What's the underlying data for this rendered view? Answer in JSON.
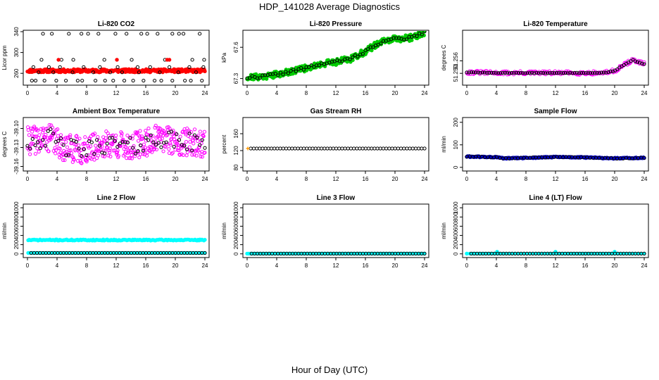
{
  "figure": {
    "title": "HDP_141028  Average Diagnostics",
    "xlabel": "Hour of Day (UTC)"
  },
  "chart_data": [
    {
      "type": "scatter",
      "title": "Li-820 CO2",
      "ylabel": "Licor ppm",
      "xlim": [
        0,
        24
      ],
      "ylim": [
        240,
        340
      ],
      "xticks": [
        "0",
        "4",
        "8",
        "12",
        "16",
        "20",
        "24"
      ],
      "yticks": [
        "260",
        "300",
        "340"
      ],
      "series": [
        {
          "name": "co2_avg",
          "color": "#ff0000",
          "marker": "filled",
          "mode": "band",
          "x_start": 0,
          "x_end": 24,
          "y_center": 265,
          "y_jitter": 3,
          "count": 300,
          "seed": 11
        },
        {
          "name": "co2_spikes",
          "color": "#000000",
          "marker": "open",
          "mode": "points",
          "x": [
            0.6,
            1.1,
            2.3,
            3.9,
            5.2,
            6.8,
            7.4,
            9.2,
            10.5,
            11.6,
            13.1,
            14.3,
            15.7,
            17.2,
            18.1,
            19.6,
            21.3,
            22.1,
            23.6,
            1.5,
            3.5,
            6.1,
            8.9,
            11.2,
            12.8,
            15.1,
            17.9,
            20.4,
            22.8,
            0.8,
            2.9,
            4.4,
            7.6,
            9.8,
            12.2,
            14.9,
            16.6,
            19.2,
            21.9,
            23.8,
            2.1,
            3.3,
            5.6,
            7.3,
            8.2,
            9.6,
            11.9,
            13.4,
            15.4,
            16.2,
            17.6,
            19.6,
            20.5,
            21.1,
            23.3,
            1.9,
            4.6,
            6.2,
            10.4,
            14.1,
            18.6,
            22.3,
            23.9
          ],
          "y": [
            246,
            246,
            246,
            246,
            246,
            246,
            246,
            246,
            246,
            246,
            246,
            246,
            246,
            246,
            246,
            246,
            246,
            246,
            246,
            262,
            262,
            262,
            262,
            262,
            262,
            262,
            262,
            262,
            262,
            272,
            272,
            272,
            272,
            272,
            272,
            272,
            272,
            272,
            272,
            272,
            336,
            336,
            336,
            336,
            336,
            336,
            336,
            336,
            336,
            336,
            336,
            336,
            336,
            336,
            336,
            286,
            286,
            286,
            286,
            286,
            286,
            286,
            286
          ]
        },
        {
          "name": "co2_red_spikes",
          "color": "#ff0000",
          "marker": "filled",
          "mode": "points",
          "x": [
            4.2,
            12.1,
            18.9,
            19.2
          ],
          "y": [
            286,
            286,
            286,
            286
          ]
        }
      ]
    },
    {
      "type": "scatter",
      "title": "Li-820 Pressure",
      "ylabel": "kPa",
      "xlim": [
        0,
        24
      ],
      "ylim": [
        67.25,
        67.75
      ],
      "xticks": [
        "0",
        "4",
        "8",
        "12",
        "16",
        "20",
        "24"
      ],
      "yticks": [
        "67.3",
        "67.6"
      ],
      "series": [
        {
          "name": "pressure_green",
          "color": "#00cc00",
          "marker": "filled",
          "mode": "curve",
          "x_start": 0,
          "x_end": 24,
          "curve_x": [
            0,
            2,
            4,
            6,
            8,
            10,
            12,
            14,
            16,
            18,
            20,
            22,
            24
          ],
          "curve_y": [
            67.31,
            67.32,
            67.34,
            67.37,
            67.4,
            67.44,
            67.46,
            67.49,
            67.56,
            67.65,
            67.68,
            67.69,
            67.74
          ],
          "y_jitter": 0.03,
          "count": 320,
          "seed": 21
        },
        {
          "name": "pressure_black",
          "color": "#000000",
          "marker": "open",
          "mode": "curve",
          "x_start": 0,
          "x_end": 24,
          "curve_x": [
            0,
            2,
            4,
            6,
            8,
            10,
            12,
            14,
            16,
            18,
            20,
            22,
            24
          ],
          "curve_y": [
            67.31,
            67.32,
            67.34,
            67.37,
            67.4,
            67.44,
            67.46,
            67.49,
            67.56,
            67.65,
            67.68,
            67.69,
            67.74
          ],
          "y_jitter": 0.015,
          "count": 70,
          "seed": 22
        }
      ]
    },
    {
      "type": "scatter",
      "title": "Li-820 Temperature",
      "ylabel": "degrees C",
      "xlim": [
        0,
        24
      ],
      "ylim": [
        51.245,
        51.27
      ],
      "xticks": [
        "0",
        "4",
        "8",
        "12",
        "16",
        "20",
        "24"
      ],
      "yticks": [
        "51.250",
        "51.256"
      ],
      "series": [
        {
          "name": "ltemp_magenta",
          "color": "#ff00ff",
          "marker": "open",
          "mode": "curve",
          "x_start": 0,
          "x_end": 24,
          "curve_x": [
            0,
            4,
            8,
            12,
            16,
            18,
            19,
            20,
            21,
            22,
            22.5,
            23,
            24
          ],
          "curve_y": [
            51.2505,
            51.2502,
            51.2502,
            51.2502,
            51.2502,
            51.2502,
            51.2505,
            51.2512,
            51.2535,
            51.2555,
            51.2565,
            51.2555,
            51.2545
          ],
          "y_jitter": 0.0009,
          "count": 190,
          "seed": 31
        },
        {
          "name": "ltemp_black",
          "color": "#000000",
          "marker": "open",
          "mode": "curve",
          "x_start": 0,
          "x_end": 24,
          "curve_x": [
            0,
            4,
            8,
            12,
            16,
            18,
            19,
            20,
            21,
            22,
            22.5,
            23,
            24
          ],
          "curve_y": [
            51.2505,
            51.2502,
            51.2502,
            51.2502,
            51.2502,
            51.2502,
            51.2505,
            51.2512,
            51.2535,
            51.2555,
            51.2565,
            51.2555,
            51.2545
          ],
          "y_jitter": 0.0001,
          "count": 80,
          "seed": 32
        }
      ]
    },
    {
      "type": "scatter",
      "title": "Ambient Box Temperature",
      "ylabel": "degrees C",
      "xlim": [
        0,
        24
      ],
      "ylim": [
        -39.165,
        -39.085
      ],
      "xticks": [
        "0",
        "4",
        "8",
        "12",
        "16",
        "20",
        "24"
      ],
      "yticks": [
        "-39.16",
        "-39.13",
        "-39.10"
      ],
      "series": [
        {
          "name": "amb_magenta",
          "color": "#ff00ff",
          "marker": "open",
          "mode": "curve",
          "x_start": 0,
          "x_end": 24,
          "curve_x": [
            0,
            3,
            5,
            8,
            10,
            12,
            14,
            18,
            20,
            24
          ],
          "curve_y": [
            -39.12,
            -39.115,
            -39.13,
            -39.135,
            -39.125,
            -39.125,
            -39.13,
            -39.115,
            -39.12,
            -39.125
          ],
          "y_jitter": 0.022,
          "count": 420,
          "seed": 41
        },
        {
          "name": "amb_black",
          "color": "#000000",
          "marker": "open",
          "mode": "curve",
          "x_start": 0,
          "x_end": 24,
          "curve_x": [
            0,
            3,
            5,
            8,
            10,
            12,
            14,
            18,
            20,
            24
          ],
          "curve_y": [
            -39.12,
            -39.115,
            -39.13,
            -39.135,
            -39.125,
            -39.125,
            -39.13,
            -39.115,
            -39.12,
            -39.125
          ],
          "y_jitter": 0.015,
          "count": 70,
          "seed": 42
        }
      ]
    },
    {
      "type": "scatter",
      "title": "Gas Stream RH",
      "ylabel": "percent",
      "xlim": [
        0,
        24
      ],
      "ylim": [
        75,
        195
      ],
      "xticks": [
        "0",
        "4",
        "8",
        "12",
        "16",
        "20",
        "24"
      ],
      "yticks": [
        "80",
        "120",
        "160"
      ],
      "series": [
        {
          "name": "rh_black",
          "color": "#000000",
          "marker": "open",
          "mode": "line",
          "x_start": 0.5,
          "x_end": 24,
          "y_start": 125,
          "y_end": 125,
          "count": 60
        },
        {
          "name": "rh_orange",
          "color": "#ff9900",
          "marker": "cross",
          "mode": "points",
          "x": [
            0.1
          ],
          "y": [
            125
          ]
        }
      ]
    },
    {
      "type": "scatter",
      "title": "Sample Flow",
      "ylabel": "ml/min",
      "xlim": [
        0,
        24
      ],
      "ylim": [
        -10,
        215
      ],
      "xticks": [
        "0",
        "4",
        "8",
        "12",
        "16",
        "20",
        "24"
      ],
      "yticks": [
        "0",
        "100",
        "200"
      ],
      "series": [
        {
          "name": "sflow_blue",
          "color": "#0000cc",
          "marker": "filled",
          "mode": "curve",
          "x_start": 0,
          "x_end": 24,
          "curve_x": [
            0,
            4,
            5,
            8,
            12,
            16,
            20,
            24
          ],
          "curve_y": [
            48,
            45,
            40,
            42,
            46,
            44,
            40,
            42
          ],
          "y_jitter": 2.5,
          "count": 220,
          "seed": 61
        },
        {
          "name": "sflow_black",
          "color": "#000000",
          "marker": "open",
          "mode": "curve",
          "x_start": 0,
          "x_end": 24,
          "curve_x": [
            0,
            4,
            5,
            8,
            12,
            16,
            20,
            24
          ],
          "curve_y": [
            48,
            45,
            40,
            42,
            46,
            44,
            40,
            42
          ],
          "y_jitter": 1.5,
          "count": 60,
          "seed": 62
        }
      ]
    },
    {
      "type": "scatter",
      "title": "Line 2 Flow",
      "ylabel": "ml/min",
      "xlim": [
        0,
        24
      ],
      "ylim": [
        -50,
        1050
      ],
      "xticks": [
        "0",
        "4",
        "8",
        "12",
        "16",
        "20",
        "24"
      ],
      "yticks": [
        "0",
        "200",
        "400",
        "600",
        "800",
        "1000"
      ],
      "series": [
        {
          "name": "l2_cyan_band",
          "color": "#00ffff",
          "marker": "filled",
          "mode": "band",
          "x_start": 0.1,
          "x_end": 24,
          "y_center": 300,
          "y_jitter": 12,
          "count": 180,
          "seed": 71
        },
        {
          "name": "l2_cyan_low",
          "color": "#00ffff",
          "marker": "filled",
          "mode": "line",
          "x_start": 0.1,
          "x_end": 24,
          "y_start": 20,
          "y_end": 20,
          "count": 120
        },
        {
          "name": "l2_black",
          "color": "#000000",
          "marker": "open",
          "mode": "line",
          "x_start": 0.5,
          "x_end": 24,
          "y_start": 20,
          "y_end": 20,
          "count": 60
        }
      ]
    },
    {
      "type": "scatter",
      "title": "Line 3 Flow",
      "ylabel": "ml/min",
      "xlim": [
        0,
        24
      ],
      "ylim": [
        -50,
        1050
      ],
      "xticks": [
        "0",
        "4",
        "8",
        "12",
        "16",
        "20",
        "24"
      ],
      "yticks": [
        "0",
        "200",
        "400",
        "600",
        "800",
        "1000"
      ],
      "series": [
        {
          "name": "l3_cyan",
          "color": "#00ffff",
          "marker": "filled",
          "mode": "line",
          "x_start": 0,
          "x_end": 24,
          "y_start": 5,
          "y_end": 5,
          "count": 120
        },
        {
          "name": "l3_black",
          "color": "#000000",
          "marker": "open",
          "mode": "line",
          "x_start": 0.6,
          "x_end": 24,
          "y_start": 5,
          "y_end": 5,
          "count": 60
        }
      ]
    },
    {
      "type": "scatter",
      "title": "Line 4 (LT) Flow",
      "ylabel": "ml/min",
      "xlim": [
        0,
        24
      ],
      "ylim": [
        -50,
        1050
      ],
      "xticks": [
        "0",
        "4",
        "8",
        "12",
        "16",
        "20",
        "24"
      ],
      "yticks": [
        "0",
        "200",
        "400",
        "600",
        "800",
        "1000"
      ],
      "series": [
        {
          "name": "l4_cyan",
          "color": "#00ffff",
          "marker": "filled",
          "mode": "points",
          "x": [
            0,
            4.1,
            12,
            20
          ],
          "y": [
            5,
            45,
            45,
            45
          ]
        },
        {
          "name": "l4_cyan_line",
          "color": "#00ffff",
          "marker": "filled",
          "mode": "line",
          "x_start": 0,
          "x_end": 24,
          "y_start": 5,
          "y_end": 5,
          "count": 60
        },
        {
          "name": "l4_black",
          "color": "#000000",
          "marker": "open",
          "mode": "line",
          "x_start": 0.6,
          "x_end": 24,
          "y_start": 5,
          "y_end": 5,
          "count": 60
        }
      ]
    }
  ]
}
